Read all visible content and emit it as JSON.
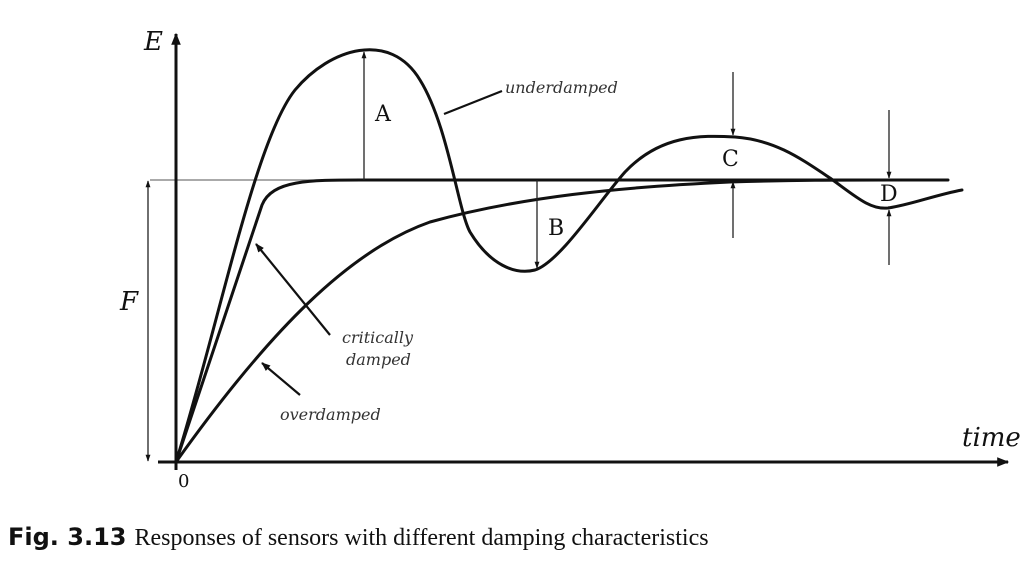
{
  "axes": {
    "y_label": "E",
    "x_label": "time",
    "origin_label": "0",
    "final_value_label": "F"
  },
  "curves": {
    "underdamped": "underdamped",
    "critically_line1": "critically",
    "critically_line2": "damped",
    "overdamped": "overdamped"
  },
  "markers": {
    "a": "A",
    "b": "B",
    "c": "C",
    "d": "D"
  },
  "caption": {
    "number": "Fig. 3.13",
    "text": "Responses of sensors with different damping characteristics"
  }
}
